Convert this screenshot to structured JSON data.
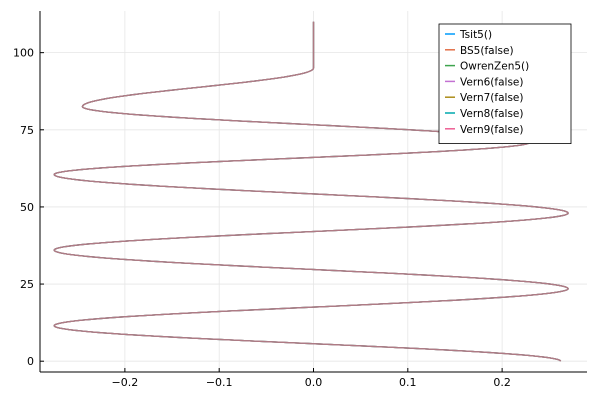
{
  "chart_data": {
    "type": "line",
    "title": "",
    "xlabel": "",
    "ylabel": "",
    "xlim": [
      -0.29,
      0.29
    ],
    "ylim": [
      -3.5,
      113.5
    ],
    "x_ticks": [
      -0.2,
      -0.1,
      0.0,
      0.1,
      0.2
    ],
    "x_tick_labels": [
      "−0.2",
      "−0.1",
      "0.0",
      "0.1",
      "0.2"
    ],
    "y_ticks": [
      0,
      25,
      50,
      75,
      100
    ],
    "y_tick_labels": [
      "0",
      "25",
      "50",
      "75",
      "100"
    ],
    "grid": true,
    "legend_position": "top-right",
    "curve": {
      "description_points": [
        [
          0.262,
          0
        ],
        [
          -0.275,
          11.5
        ],
        [
          0.27,
          23.5
        ],
        [
          -0.275,
          36
        ],
        [
          0.27,
          48
        ],
        [
          -0.275,
          60.5
        ],
        [
          0.23,
          71
        ],
        [
          -0.245,
          82.5
        ],
        [
          0.0,
          95
        ],
        [
          0.0,
          110
        ]
      ]
    },
    "series": [
      {
        "name": "Tsit5()",
        "color": "#009AFA"
      },
      {
        "name": "BS5(false)",
        "color": "#E36F47"
      },
      {
        "name": "OwrenZen5()",
        "color": "#3EA44E"
      },
      {
        "name": "Vern6(false)",
        "color": "#C371D2"
      },
      {
        "name": "Vern7(false)",
        "color": "#AC8D18"
      },
      {
        "name": "Vern8(false)",
        "color": "#00A9AD"
      },
      {
        "name": "Vern9(false)",
        "color": "#ED5E93"
      }
    ],
    "line_color_visible": "#B07A84"
  }
}
